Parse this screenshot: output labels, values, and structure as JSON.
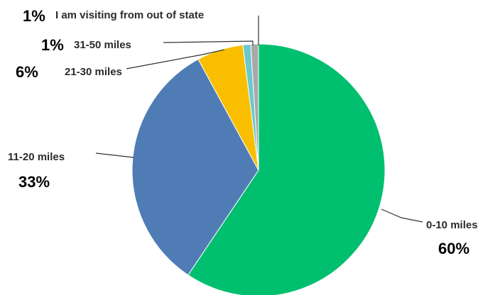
{
  "chart_data": {
    "type": "pie",
    "slices": [
      {
        "label": "0-10 miles",
        "pct_label": "60%",
        "value": 60,
        "color": "#00bf6f"
      },
      {
        "label": "11-20 miles",
        "pct_label": "33%",
        "value": 33,
        "color": "#507cb6"
      },
      {
        "label": "21-30 miles",
        "pct_label": "6%",
        "value": 6,
        "color": "#f9be00"
      },
      {
        "label": "31-50 miles",
        "pct_label": "1%",
        "value": 1,
        "color": "#6bc8cd"
      },
      {
        "label": "I am visiting from out of state",
        "pct_label": "1%",
        "value": 1,
        "color": "#a8a8a8"
      }
    ]
  }
}
